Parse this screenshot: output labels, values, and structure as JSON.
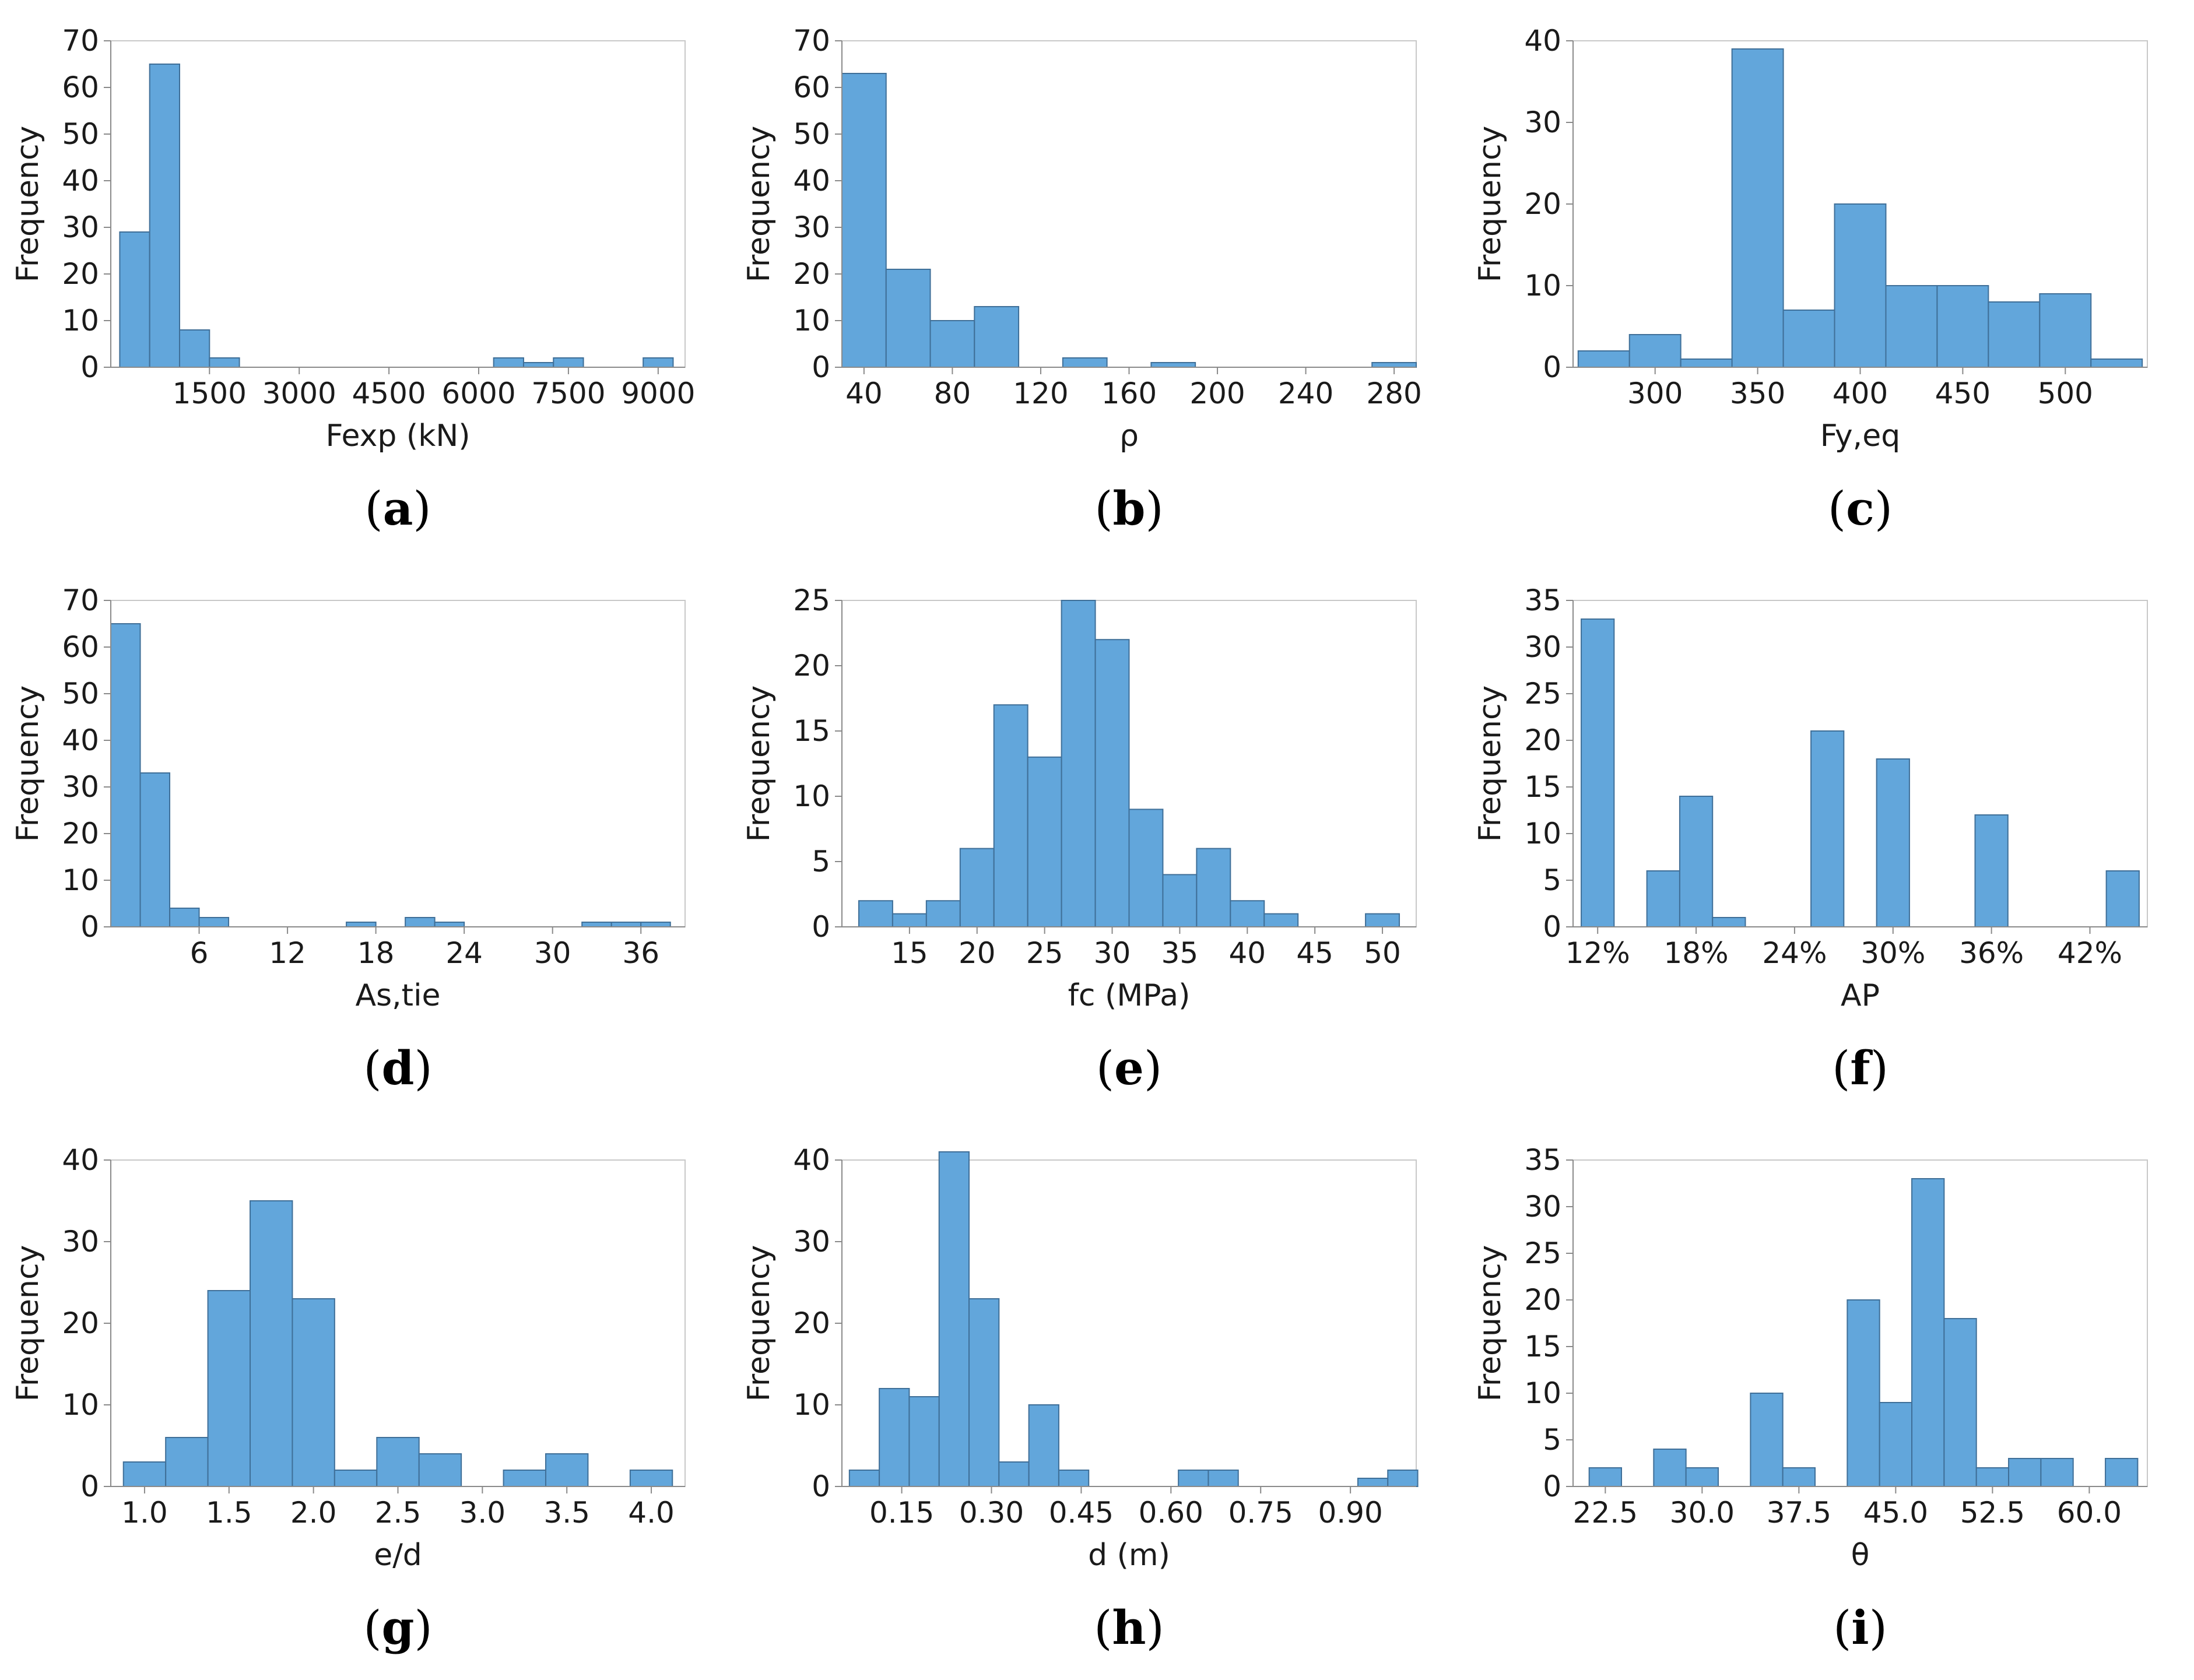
{
  "chart_data": [
    {
      "type": "bar",
      "caption": "a",
      "xlabel": "Fexp (kN)",
      "ylabel": "Frequency",
      "ylim": [
        0,
        70
      ],
      "yticks": [
        0,
        10,
        20,
        30,
        40,
        50,
        60,
        70
      ],
      "xlim": [
        -150,
        9450
      ],
      "xticks": [
        1500,
        3000,
        4500,
        6000,
        7500,
        9000
      ],
      "xtick_labels": [
        "1500",
        "3000",
        "4500",
        "6000",
        "7500",
        "9000"
      ],
      "bin_width": 500,
      "bins": [
        {
          "x0": 0,
          "x1": 500,
          "count": 29
        },
        {
          "x0": 500,
          "x1": 1000,
          "count": 65
        },
        {
          "x0": 1000,
          "x1": 1500,
          "count": 8
        },
        {
          "x0": 1500,
          "x1": 2000,
          "count": 2
        },
        {
          "x0": 6250,
          "x1": 6750,
          "count": 2
        },
        {
          "x0": 6750,
          "x1": 7250,
          "count": 1
        },
        {
          "x0": 7250,
          "x1": 7750,
          "count": 2
        },
        {
          "x0": 8750,
          "x1": 9250,
          "count": 2
        }
      ]
    },
    {
      "type": "bar",
      "caption": "b",
      "xlabel": "ρ",
      "ylabel": "Frequency",
      "ylim": [
        0,
        70
      ],
      "yticks": [
        0,
        10,
        20,
        30,
        40,
        50,
        60,
        70
      ],
      "xlim": [
        30,
        290
      ],
      "xticks": [
        40,
        80,
        120,
        160,
        200,
        240,
        280
      ],
      "xtick_labels": [
        "40",
        "80",
        "120",
        "160",
        "200",
        "240",
        "280"
      ],
      "bins": [
        {
          "x0": 30,
          "x1": 50,
          "count": 63
        },
        {
          "x0": 50,
          "x1": 70,
          "count": 21
        },
        {
          "x0": 70,
          "x1": 90,
          "count": 10
        },
        {
          "x0": 90,
          "x1": 110,
          "count": 13
        },
        {
          "x0": 130,
          "x1": 150,
          "count": 2
        },
        {
          "x0": 170,
          "x1": 190,
          "count": 1
        },
        {
          "x0": 270,
          "x1": 290,
          "count": 1
        }
      ]
    },
    {
      "type": "bar",
      "caption": "c",
      "xlabel": "Fy,eq",
      "ylabel": "Frequency",
      "ylim": [
        0,
        40
      ],
      "yticks": [
        0,
        10,
        20,
        30,
        40
      ],
      "xlim": [
        260,
        540
      ],
      "xticks": [
        300,
        350,
        400,
        450,
        500
      ],
      "xtick_labels": [
        "300",
        "350",
        "400",
        "450",
        "500"
      ],
      "bins": [
        {
          "x0": 262.5,
          "x1": 287.5,
          "count": 2
        },
        {
          "x0": 287.5,
          "x1": 312.5,
          "count": 4
        },
        {
          "x0": 312.5,
          "x1": 337.5,
          "count": 1
        },
        {
          "x0": 337.5,
          "x1": 362.5,
          "count": 39
        },
        {
          "x0": 362.5,
          "x1": 387.5,
          "count": 7
        },
        {
          "x0": 387.5,
          "x1": 412.5,
          "count": 20
        },
        {
          "x0": 412.5,
          "x1": 437.5,
          "count": 10
        },
        {
          "x0": 437.5,
          "x1": 462.5,
          "count": 10
        },
        {
          "x0": 462.5,
          "x1": 487.5,
          "count": 8
        },
        {
          "x0": 487.5,
          "x1": 512.5,
          "count": 9
        },
        {
          "x0": 512.5,
          "x1": 537.5,
          "count": 1
        }
      ]
    },
    {
      "type": "bar",
      "caption": "d",
      "xlabel": "As,tie",
      "ylabel": "Frequency",
      "ylim": [
        0,
        70
      ],
      "yticks": [
        0,
        10,
        20,
        30,
        40,
        50,
        60,
        70
      ],
      "xlim": [
        0,
        39
      ],
      "xticks": [
        6,
        12,
        18,
        24,
        30,
        36
      ],
      "xtick_labels": [
        "6",
        "12",
        "18",
        "24",
        "30",
        "36"
      ],
      "bins": [
        {
          "x0": 0,
          "x1": 2,
          "count": 65
        },
        {
          "x0": 2,
          "x1": 4,
          "count": 33
        },
        {
          "x0": 4,
          "x1": 6,
          "count": 4
        },
        {
          "x0": 6,
          "x1": 8,
          "count": 2
        },
        {
          "x0": 16,
          "x1": 18,
          "count": 1
        },
        {
          "x0": 20,
          "x1": 22,
          "count": 2
        },
        {
          "x0": 22,
          "x1": 24,
          "count": 1
        },
        {
          "x0": 32,
          "x1": 34,
          "count": 1
        },
        {
          "x0": 34,
          "x1": 36,
          "count": 1
        },
        {
          "x0": 36,
          "x1": 38,
          "count": 1
        }
      ]
    },
    {
      "type": "bar",
      "caption": "e",
      "xlabel": "fc (MPa)",
      "ylabel": "Frequency",
      "ylim": [
        0,
        25
      ],
      "yticks": [
        0,
        5,
        10,
        15,
        20,
        25
      ],
      "xlim": [
        10,
        52.5
      ],
      "xticks": [
        15,
        20,
        25,
        30,
        35,
        40,
        45,
        50
      ],
      "xtick_labels": [
        "15",
        "20",
        "25",
        "30",
        "35",
        "40",
        "45",
        "50"
      ],
      "bins": [
        {
          "x0": 11.25,
          "x1": 13.75,
          "count": 2
        },
        {
          "x0": 13.75,
          "x1": 16.25,
          "count": 1
        },
        {
          "x0": 16.25,
          "x1": 18.75,
          "count": 2
        },
        {
          "x0": 18.75,
          "x1": 21.25,
          "count": 6
        },
        {
          "x0": 21.25,
          "x1": 23.75,
          "count": 17
        },
        {
          "x0": 23.75,
          "x1": 26.25,
          "count": 13
        },
        {
          "x0": 26.25,
          "x1": 28.75,
          "count": 25
        },
        {
          "x0": 28.75,
          "x1": 31.25,
          "count": 22
        },
        {
          "x0": 31.25,
          "x1": 33.75,
          "count": 9
        },
        {
          "x0": 33.75,
          "x1": 36.25,
          "count": 4
        },
        {
          "x0": 36.25,
          "x1": 38.75,
          "count": 6
        },
        {
          "x0": 38.75,
          "x1": 41.25,
          "count": 2
        },
        {
          "x0": 41.25,
          "x1": 43.75,
          "count": 1
        },
        {
          "x0": 48.75,
          "x1": 51.25,
          "count": 1
        }
      ]
    },
    {
      "type": "bar",
      "caption": "f",
      "xlabel": "AP",
      "ylabel": "Frequency",
      "ylim": [
        0,
        35
      ],
      "yticks": [
        0,
        5,
        10,
        15,
        20,
        25,
        30,
        35
      ],
      "xlim": [
        10.5,
        45.5
      ],
      "xticks": [
        12,
        18,
        24,
        30,
        36,
        42
      ],
      "xtick_labels": [
        "12%",
        "18%",
        "24%",
        "30%",
        "36%",
        "42%"
      ],
      "bins": [
        {
          "x0": 11,
          "x1": 13,
          "count": 33
        },
        {
          "x0": 15,
          "x1": 17,
          "count": 6
        },
        {
          "x0": 17,
          "x1": 19,
          "count": 14
        },
        {
          "x0": 19,
          "x1": 21,
          "count": 1
        },
        {
          "x0": 25,
          "x1": 27,
          "count": 21
        },
        {
          "x0": 29,
          "x1": 31,
          "count": 18
        },
        {
          "x0": 35,
          "x1": 37,
          "count": 12
        },
        {
          "x0": 43,
          "x1": 45,
          "count": 6
        }
      ]
    },
    {
      "type": "bar",
      "caption": "g",
      "xlabel": "e/d",
      "ylabel": "Frequency",
      "ylim": [
        0,
        40
      ],
      "yticks": [
        0,
        10,
        20,
        30,
        40
      ],
      "xlim": [
        0.8,
        4.2
      ],
      "xticks": [
        1.0,
        1.5,
        2.0,
        2.5,
        3.0,
        3.5,
        4.0
      ],
      "xtick_labels": [
        "1.0",
        "1.5",
        "2.0",
        "2.5",
        "3.0",
        "3.5",
        "4.0"
      ],
      "bins": [
        {
          "x0": 0.875,
          "x1": 1.125,
          "count": 3
        },
        {
          "x0": 1.125,
          "x1": 1.375,
          "count": 6
        },
        {
          "x0": 1.375,
          "x1": 1.625,
          "count": 24
        },
        {
          "x0": 1.625,
          "x1": 1.875,
          "count": 35
        },
        {
          "x0": 1.875,
          "x1": 2.125,
          "count": 23
        },
        {
          "x0": 2.125,
          "x1": 2.375,
          "count": 2
        },
        {
          "x0": 2.375,
          "x1": 2.625,
          "count": 6
        },
        {
          "x0": 2.625,
          "x1": 2.875,
          "count": 4
        },
        {
          "x0": 3.125,
          "x1": 3.375,
          "count": 2
        },
        {
          "x0": 3.375,
          "x1": 3.625,
          "count": 4
        },
        {
          "x0": 3.875,
          "x1": 4.125,
          "count": 2
        }
      ]
    },
    {
      "type": "bar",
      "caption": "h",
      "xlabel": "d (m)",
      "ylabel": "Frequency",
      "ylim": [
        0,
        40
      ],
      "yticks": [
        0,
        10,
        20,
        30,
        40
      ],
      "xlim": [
        0.05,
        1.01
      ],
      "xticks": [
        0.15,
        0.3,
        0.45,
        0.6,
        0.75,
        0.9
      ],
      "xtick_labels": [
        "0.15",
        "0.30",
        "0.45",
        "0.60",
        "0.75",
        "0.90"
      ],
      "bins": [
        {
          "x0": 0.0625,
          "x1": 0.1125,
          "count": 2
        },
        {
          "x0": 0.1125,
          "x1": 0.1625,
          "count": 12
        },
        {
          "x0": 0.1625,
          "x1": 0.2125,
          "count": 11
        },
        {
          "x0": 0.2125,
          "x1": 0.2625,
          "count": 41
        },
        {
          "x0": 0.2625,
          "x1": 0.3125,
          "count": 23
        },
        {
          "x0": 0.3125,
          "x1": 0.3625,
          "count": 3
        },
        {
          "x0": 0.3625,
          "x1": 0.4125,
          "count": 10
        },
        {
          "x0": 0.4125,
          "x1": 0.4625,
          "count": 2
        },
        {
          "x0": 0.6125,
          "x1": 0.6625,
          "count": 2
        },
        {
          "x0": 0.6625,
          "x1": 0.7125,
          "count": 2
        },
        {
          "x0": 0.9125,
          "x1": 0.9625,
          "count": 1
        },
        {
          "x0": 0.9625,
          "x1": 1.0125,
          "count": 2
        }
      ]
    },
    {
      "type": "bar",
      "caption": "i",
      "xlabel": "θ",
      "ylabel": "Frequency",
      "ylim": [
        0,
        35
      ],
      "yticks": [
        0,
        5,
        10,
        15,
        20,
        25,
        30,
        35
      ],
      "xlim": [
        20,
        64.5
      ],
      "xticks": [
        22.5,
        30.0,
        37.5,
        45.0,
        52.5,
        60.0
      ],
      "xtick_labels": [
        "22.5",
        "30.0",
        "37.5",
        "45.0",
        "52.5",
        "60.0"
      ],
      "bins": [
        {
          "x0": 21.25,
          "x1": 23.75,
          "count": 2
        },
        {
          "x0": 26.25,
          "x1": 28.75,
          "count": 4
        },
        {
          "x0": 28.75,
          "x1": 31.25,
          "count": 2
        },
        {
          "x0": 33.75,
          "x1": 36.25,
          "count": 10
        },
        {
          "x0": 36.25,
          "x1": 38.75,
          "count": 2
        },
        {
          "x0": 41.25,
          "x1": 43.75,
          "count": 20
        },
        {
          "x0": 43.75,
          "x1": 46.25,
          "count": 9
        },
        {
          "x0": 46.25,
          "x1": 48.75,
          "count": 33
        },
        {
          "x0": 48.75,
          "x1": 51.25,
          "count": 18
        },
        {
          "x0": 51.25,
          "x1": 53.75,
          "count": 2
        },
        {
          "x0": 53.75,
          "x1": 56.25,
          "count": 3
        },
        {
          "x0": 56.25,
          "x1": 58.75,
          "count": 3
        },
        {
          "x0": 61.25,
          "x1": 63.75,
          "count": 3
        }
      ]
    }
  ]
}
